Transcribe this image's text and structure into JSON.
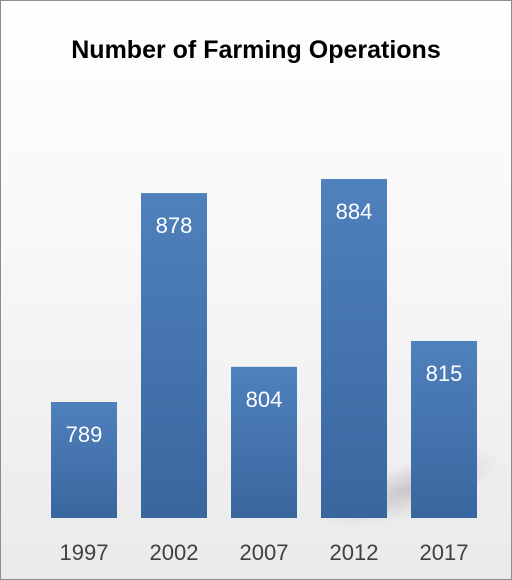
{
  "chart_data": {
    "type": "bar",
    "title": "Number of Farming Operations",
    "categories": [
      "1997",
      "2002",
      "2007",
      "2012",
      "2017"
    ],
    "values": [
      789,
      878,
      804,
      884,
      815
    ],
    "xlabel": "",
    "ylabel": "",
    "ylim": [
      700,
      900
    ],
    "grid": false,
    "legend": "none",
    "data_labels": true,
    "colors": {
      "bar_top": "#4f81bd",
      "bar_bottom": "#3a669e",
      "label": "#ffffff",
      "axis_text": "#404040"
    }
  }
}
